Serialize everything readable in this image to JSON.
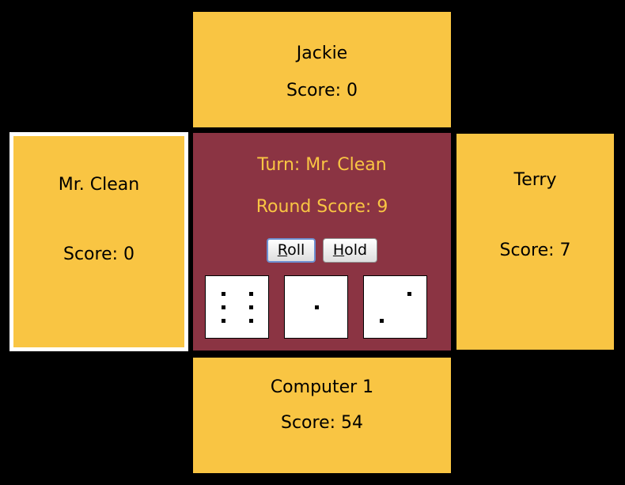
{
  "players": {
    "top": {
      "name": "Jackie",
      "score": "Score: 0"
    },
    "left": {
      "name": "Mr. Clean",
      "score": "Score: 0"
    },
    "right": {
      "name": "Terry",
      "score": "Score: 7"
    },
    "bottom": {
      "name": "Computer 1",
      "score": "Score: 54"
    }
  },
  "center": {
    "turn": "Turn: Mr. Clean",
    "round_score": "Round Score: 9",
    "roll_mnemonic": "R",
    "roll_rest": "oll",
    "hold_mnemonic": "H",
    "hold_rest": "old"
  },
  "dice": [
    6,
    1,
    2
  ],
  "colors": {
    "panel": "#f9c543",
    "center": "#8b3443",
    "highlight_border": "#ffffff",
    "background": "#000000"
  }
}
